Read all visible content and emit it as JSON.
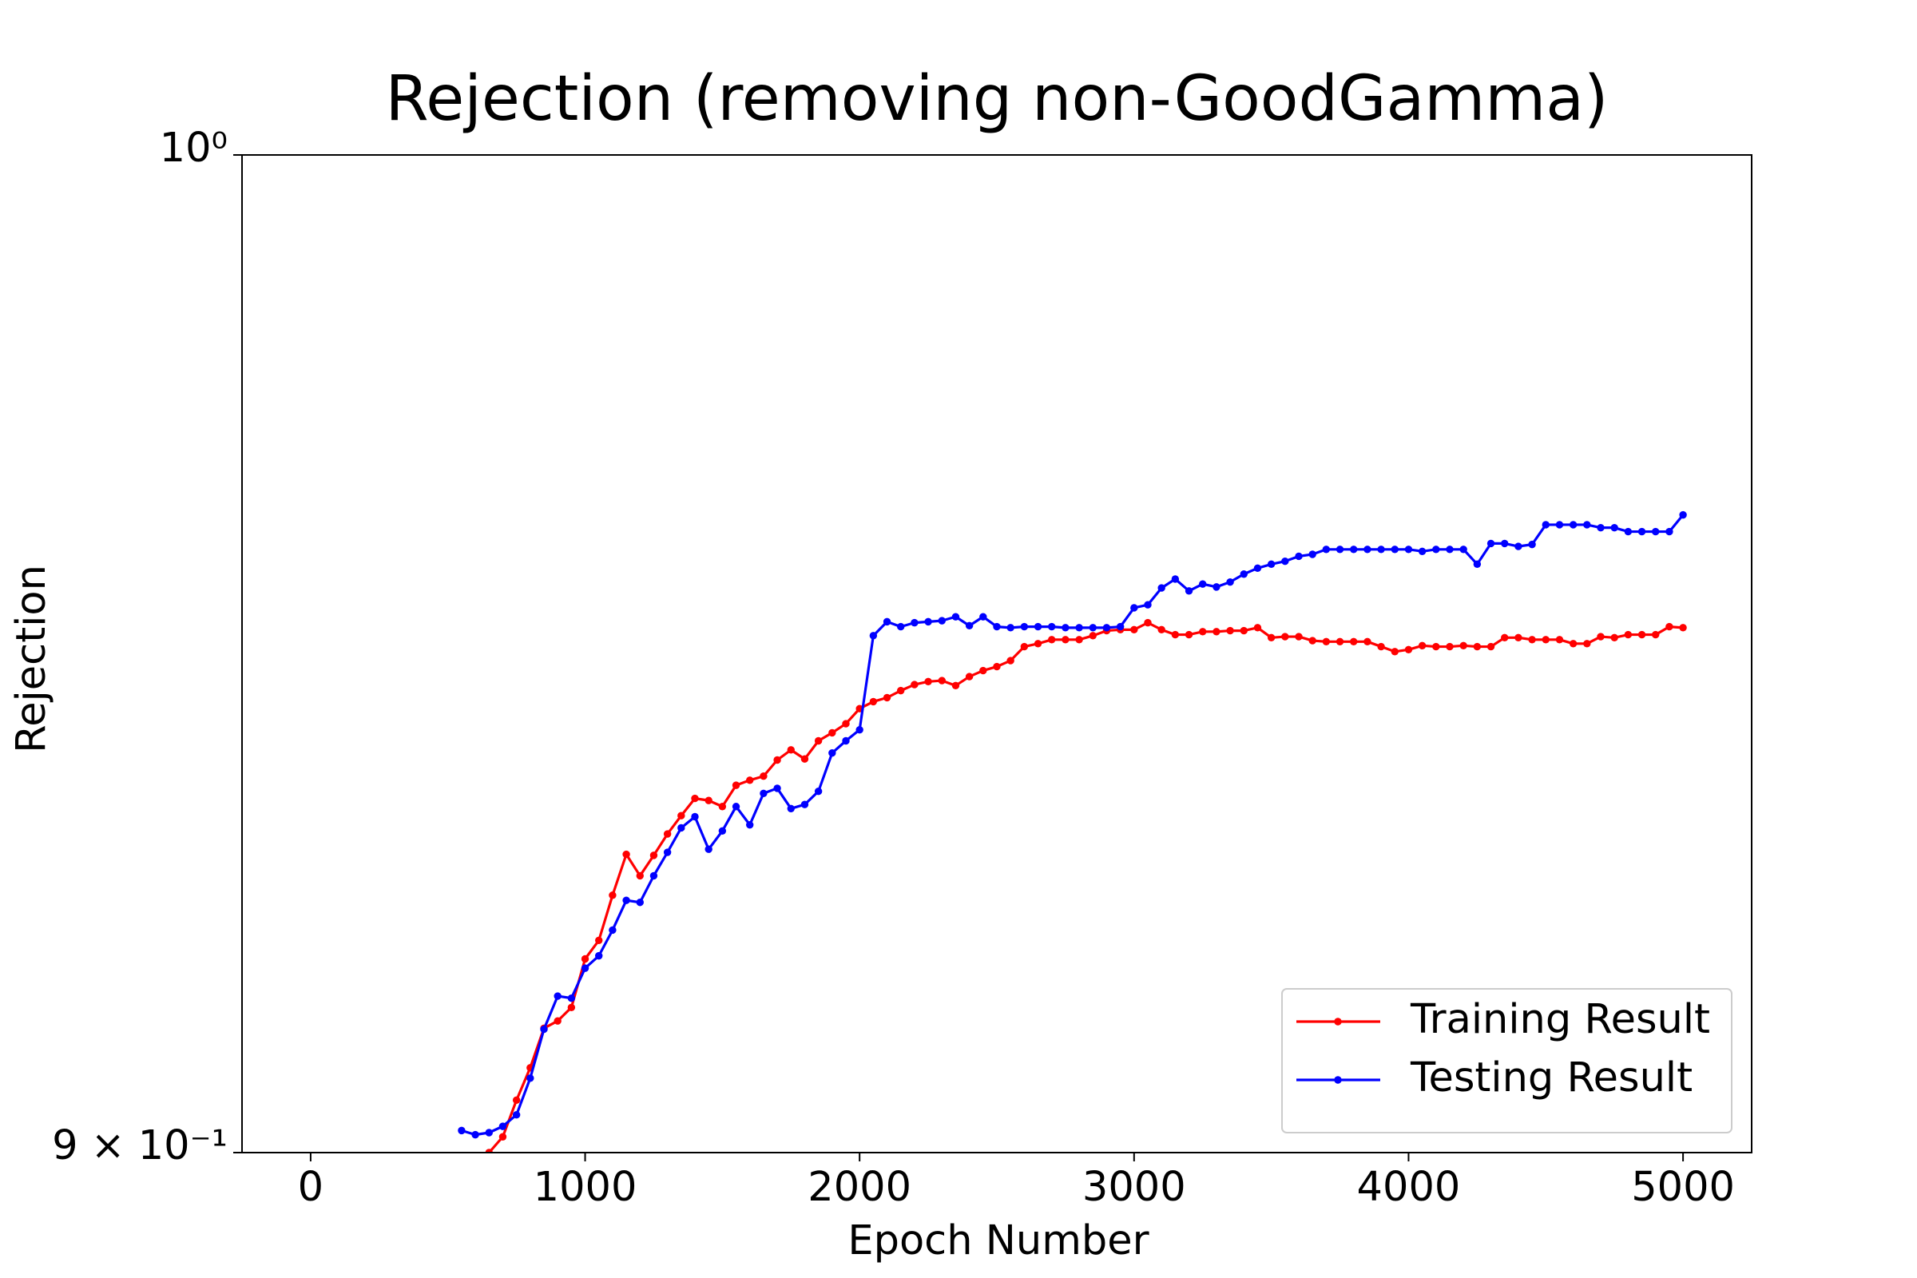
{
  "chart_data": {
    "type": "line",
    "title": "Rejection (removing non-GoodGamma)",
    "x_label": "Epoch Number",
    "y_label": "Rejection",
    "xlim": [
      -250,
      5250
    ],
    "xticks": [
      0,
      1000,
      2000,
      3000,
      4000,
      5000
    ],
    "ylim": [
      0.9,
      1.0
    ],
    "yscale": "log",
    "yticks": [
      {
        "value": 0.9,
        "label": "9 × 10⁻¹"
      },
      {
        "value": 1.0,
        "label": "10⁰"
      }
    ],
    "grid": false,
    "legend": "lower right",
    "series": [
      {
        "name": "Training Result",
        "color": "#ff0000",
        "x": [
          650,
          700,
          750,
          800,
          850,
          900,
          950,
          1000,
          1050,
          1100,
          1150,
          1200,
          1250,
          1300,
          1350,
          1400,
          1450,
          1500,
          1550,
          1600,
          1650,
          1700,
          1750,
          1800,
          1850,
          1900,
          1950,
          2000,
          2050,
          2100,
          2150,
          2200,
          2250,
          2300,
          2350,
          2400,
          2450,
          2500,
          2550,
          2600,
          2650,
          2700,
          2750,
          2800,
          2850,
          2900,
          2950,
          3000,
          3050,
          3100,
          3150,
          3200,
          3250,
          3300,
          3350,
          3400,
          3450,
          3500,
          3550,
          3600,
          3650,
          3700,
          3750,
          3800,
          3850,
          3900,
          3950,
          4000,
          4050,
          4100,
          4150,
          4200,
          4250,
          4300,
          4350,
          4400,
          4450,
          4500,
          4550,
          4600,
          4650,
          4700,
          4750,
          4800,
          4850,
          4900,
          4950,
          5000
        ],
        "values": [
          0.9,
          0.9015,
          0.905,
          0.9081,
          0.9119,
          0.9126,
          0.9139,
          0.9186,
          0.9204,
          0.9248,
          0.9288,
          0.9267,
          0.9287,
          0.9308,
          0.9326,
          0.9343,
          0.9341,
          0.9335,
          0.9356,
          0.9361,
          0.9365,
          0.9381,
          0.9391,
          0.9382,
          0.94,
          0.9408,
          0.9417,
          0.9432,
          0.9439,
          0.9443,
          0.945,
          0.9456,
          0.9459,
          0.946,
          0.9455,
          0.9464,
          0.947,
          0.9474,
          0.948,
          0.9494,
          0.9497,
          0.9501,
          0.9501,
          0.9501,
          0.9505,
          0.951,
          0.9511,
          0.9511,
          0.9518,
          0.9511,
          0.9506,
          0.9506,
          0.9509,
          0.9509,
          0.951,
          0.951,
          0.9513,
          0.9503,
          0.9504,
          0.9504,
          0.95,
          0.9499,
          0.9499,
          0.9499,
          0.9499,
          0.9494,
          0.9489,
          0.9491,
          0.9495,
          0.9494,
          0.9494,
          0.9495,
          0.9494,
          0.9494,
          0.9503,
          0.9503,
          0.9501,
          0.9501,
          0.9501,
          0.9497,
          0.9497,
          0.9504,
          0.9503,
          0.9506,
          0.9506,
          0.9506,
          0.9514,
          0.9513
        ]
      },
      {
        "name": "Testing Result",
        "color": "#0000ff",
        "x": [
          550,
          600,
          650,
          700,
          750,
          800,
          850,
          900,
          950,
          1000,
          1050,
          1100,
          1150,
          1200,
          1250,
          1300,
          1350,
          1400,
          1450,
          1500,
          1550,
          1600,
          1650,
          1700,
          1750,
          1800,
          1850,
          1900,
          1950,
          2000,
          2050,
          2100,
          2150,
          2200,
          2250,
          2300,
          2350,
          2400,
          2450,
          2500,
          2550,
          2600,
          2650,
          2700,
          2750,
          2800,
          2850,
          2900,
          2950,
          3000,
          3050,
          3100,
          3150,
          3200,
          3250,
          3300,
          3350,
          3400,
          3450,
          3500,
          3550,
          3600,
          3650,
          3700,
          3750,
          3800,
          3850,
          3900,
          3950,
          4000,
          4050,
          4100,
          4150,
          4200,
          4250,
          4300,
          4350,
          4400,
          4450,
          4500,
          4550,
          4600,
          4650,
          4700,
          4750,
          4800,
          4850,
          4900,
          4950,
          5000
        ],
        "values": [
          0.9021,
          0.9017,
          0.9019,
          0.9025,
          0.9036,
          0.9071,
          0.9118,
          0.915,
          0.9148,
          0.9177,
          0.9189,
          0.9214,
          0.9243,
          0.9241,
          0.9267,
          0.929,
          0.9314,
          0.9325,
          0.9293,
          0.9311,
          0.9335,
          0.9317,
          0.9348,
          0.9353,
          0.9333,
          0.9337,
          0.935,
          0.9388,
          0.94,
          0.9411,
          0.9505,
          0.9519,
          0.9514,
          0.9518,
          0.9519,
          0.952,
          0.9524,
          0.9515,
          0.9524,
          0.9514,
          0.9513,
          0.9514,
          0.9514,
          0.9514,
          0.9513,
          0.9513,
          0.9513,
          0.9513,
          0.9514,
          0.9533,
          0.9536,
          0.9553,
          0.9562,
          0.955,
          0.9557,
          0.9554,
          0.9559,
          0.9567,
          0.9573,
          0.9577,
          0.958,
          0.9585,
          0.9587,
          0.9592,
          0.9592,
          0.9592,
          0.9592,
          0.9592,
          0.9592,
          0.9592,
          0.959,
          0.9592,
          0.9592,
          0.9592,
          0.9577,
          0.9598,
          0.9598,
          0.9595,
          0.9597,
          0.9617,
          0.9617,
          0.9617,
          0.9617,
          0.9614,
          0.9614,
          0.961,
          0.961,
          0.961,
          0.961,
          0.9627
        ]
      }
    ]
  }
}
